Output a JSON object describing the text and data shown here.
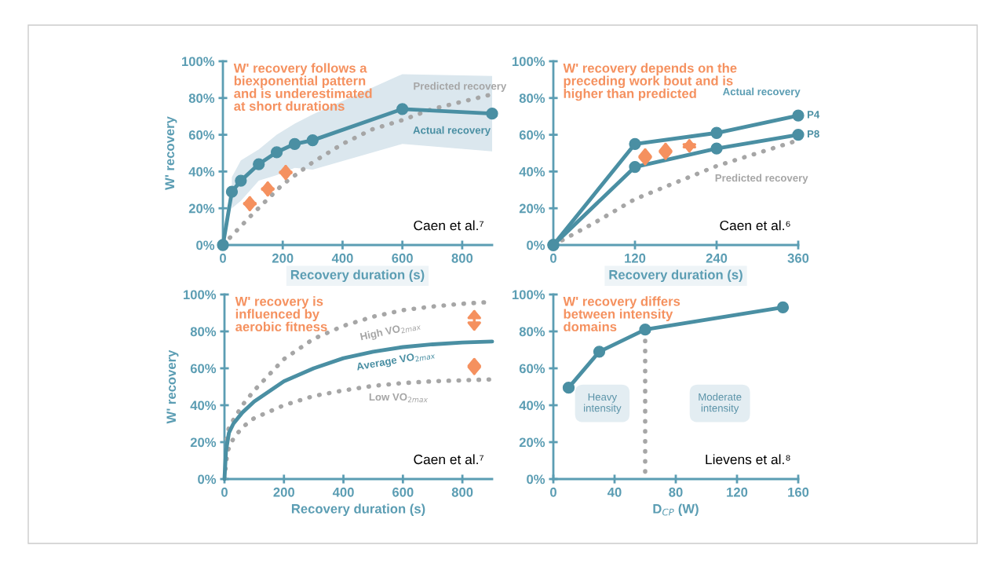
{
  "chart_data": [
    {
      "type": "line",
      "title": "W' recovery follows a\nbiexponential pattern\nand is underestimated\nat short durations",
      "xlabel": "Recovery duration (s)",
      "ylabel": "W' recovery",
      "xlim": [
        0,
        900
      ],
      "xticks": [
        0,
        200,
        400,
        600,
        800
      ],
      "ylim": [
        0,
        100
      ],
      "yticks": [
        {
          "value": 0,
          "label": "0%"
        },
        {
          "value": 20,
          "label": "20%"
        },
        {
          "value": 40,
          "label": "40%"
        },
        {
          "value": 60,
          "label": "60%"
        },
        {
          "value": 80,
          "label": "80%"
        },
        {
          "value": 100,
          "label": "100%"
        }
      ],
      "series": [
        {
          "name": "Predicted recovery",
          "color": "#a6a6a6",
          "marker": "none",
          "line_style": "dotted",
          "x": [
            0,
            100,
            200,
            300,
            400,
            500,
            600,
            700,
            800,
            900
          ],
          "values": [
            0,
            17,
            33,
            45,
            55,
            63,
            68,
            74,
            78,
            82
          ]
        },
        {
          "name": "Actual recovery",
          "color": "#4a8fa3",
          "marker": "circle",
          "line_style": "solid",
          "x": [
            0,
            30,
            60,
            120,
            180,
            240,
            300,
            600,
            900
          ],
          "values": [
            0,
            29,
            35,
            44,
            50.5,
            55,
            57,
            74,
            71.5
          ],
          "lower": [
            null,
            20,
            24,
            35,
            38,
            42,
            41,
            55,
            51
          ],
          "upper": [
            null,
            37,
            46,
            52,
            60,
            66,
            71,
            93,
            92
          ]
        }
      ],
      "annotations": [
        "Caen et al.⁷"
      ],
      "legend": false,
      "grid": false
    },
    {
      "type": "line",
      "title": "W' recovery depends on the\npreceding work bout and is\nhigher than predicted",
      "xlabel": "Recovery duration (s)",
      "xlim": [
        0,
        360
      ],
      "xticks": [
        0,
        120,
        240,
        360
      ],
      "ylim": [
        0,
        100
      ],
      "yticks": [
        {
          "value": 0,
          "label": "0%"
        },
        {
          "value": 20,
          "label": "20%"
        },
        {
          "value": 40,
          "label": "40%"
        },
        {
          "value": 60,
          "label": "60%"
        },
        {
          "value": 80,
          "label": "80%"
        },
        {
          "value": 100,
          "label": "100%"
        }
      ],
      "series": [
        {
          "name": "Predicted recovery",
          "color": "#a6a6a6",
          "marker": "none",
          "line_style": "dotted",
          "x": [
            0,
            60,
            120,
            180,
            240,
            300,
            360
          ],
          "values": [
            0,
            12,
            25,
            34,
            43,
            50,
            57
          ]
        },
        {
          "name": "P4",
          "color": "#4a8fa3",
          "marker": "circle",
          "line_style": "solid",
          "x": [
            0,
            120,
            240,
            360
          ],
          "values": [
            0,
            55,
            61,
            70.5
          ]
        },
        {
          "name": "P8",
          "color": "#4a8fa3",
          "marker": "circle",
          "line_style": "solid",
          "x": [
            0,
            120,
            240,
            360
          ],
          "values": [
            0,
            42.5,
            52.5,
            60
          ]
        }
      ],
      "annotations": [
        "Actual recovery",
        "Caen et al.⁶"
      ],
      "legend": false,
      "grid": false
    },
    {
      "type": "line",
      "title": "W' recovery is\ninfluenced by\naerobic fitness",
      "xlabel": "Recovery duration (s)",
      "ylabel": "W' recovery",
      "xlim": [
        0,
        900
      ],
      "xticks": [
        0,
        200,
        400,
        600,
        800
      ],
      "ylim": [
        0,
        100
      ],
      "yticks": [
        {
          "value": 0,
          "label": "0%"
        },
        {
          "value": 20,
          "label": "20%"
        },
        {
          "value": 40,
          "label": "40%"
        },
        {
          "value": 60,
          "label": "60%"
        },
        {
          "value": 80,
          "label": "80%"
        },
        {
          "value": 100,
          "label": "100%"
        }
      ],
      "series": [
        {
          "name": "High VO$_{2max}$",
          "color": "#a6a6a6",
          "marker": "none",
          "line_style": "dotted",
          "x": [
            0,
            5,
            15,
            30,
            60,
            100,
            200,
            300,
            400,
            500,
            600,
            700,
            800,
            900
          ],
          "values": [
            0,
            20,
            28,
            32,
            40,
            48,
            65,
            76,
            83,
            88,
            91.5,
            93.5,
            95,
            96
          ]
        },
        {
          "name": "Average VO$_{2max}$",
          "color": "#4a8fa3",
          "marker": "none",
          "line_style": "solid",
          "x": [
            0,
            5,
            15,
            30,
            60,
            100,
            200,
            300,
            400,
            500,
            600,
            700,
            800,
            900
          ],
          "values": [
            0,
            15,
            25,
            30,
            36,
            42,
            53,
            60,
            65.5,
            69,
            71.5,
            73,
            74,
            74.5
          ]
        },
        {
          "name": "Low VO$_{2max}$",
          "color": "#a6a6a6",
          "marker": "none",
          "line_style": "dotted",
          "x": [
            0,
            10,
            30,
            60,
            100,
            200,
            300,
            400,
            500,
            600,
            700,
            800,
            900
          ],
          "values": [
            0,
            15,
            22,
            28,
            33,
            40,
            45,
            48,
            50.5,
            52,
            53,
            53.5,
            54
          ]
        }
      ],
      "annotations": [
        "Caen et al.⁷"
      ],
      "legend": false,
      "grid": false
    },
    {
      "type": "line",
      "title": "W' recovery differs\nbetween intensity\ndomains",
      "xlabel": "D$_{CP}$ (W)",
      "xlim": [
        0,
        160
      ],
      "xticks": [
        0,
        40,
        80,
        120,
        160
      ],
      "ylim": [
        0,
        100
      ],
      "yticks": [
        {
          "value": 0,
          "label": "0%"
        },
        {
          "value": 20,
          "label": "20%"
        },
        {
          "value": 40,
          "label": "40%"
        },
        {
          "value": 60,
          "label": "60%"
        },
        {
          "value": 80,
          "label": "80%"
        },
        {
          "value": 100,
          "label": "100%"
        }
      ],
      "series": [
        {
          "color": "#4a8fa3",
          "marker": "circle",
          "line_style": "solid",
          "x": [
            10,
            30,
            60,
            150
          ],
          "values": [
            49.5,
            69,
            81,
            93
          ]
        }
      ],
      "ref_lines": [
        {
          "axis": "x",
          "value": 60,
          "color": "#a6a6a6",
          "line_style": "dotted"
        }
      ],
      "annotations": [
        "Heavy\nintensity",
        "Moderate\nintensity",
        "Lievens et al.⁸"
      ],
      "legend": false,
      "grid": false
    }
  ]
}
